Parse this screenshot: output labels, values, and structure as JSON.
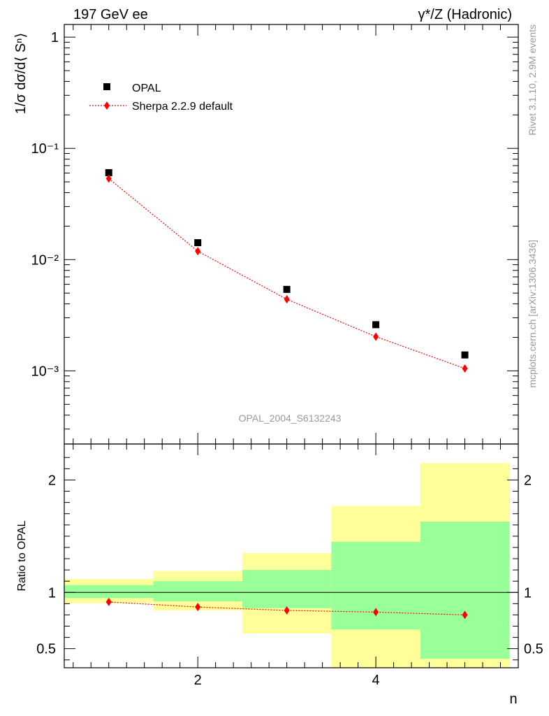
{
  "header": {
    "left": "197 GeV ee",
    "right": "γ*/Z (Hadronic)"
  },
  "side_text": {
    "rivet": "Rivet 3.1.10,  2.9M events",
    "mcplots": "mcplots.cern.ch [arXiv:1306.3436]"
  },
  "watermark": "OPAL_2004_S6132243",
  "chart_data": [
    {
      "type": "scatter",
      "ylabel": "1/σ dσ/d⟨ Sⁿ⟩",
      "yscale": "log",
      "ylim": [
        0.00022,
        1.3
      ],
      "xlim": [
        0.5,
        5.6
      ],
      "y_ticks": [
        {
          "value": 1,
          "label": "1"
        },
        {
          "value": 0.1,
          "label": "10⁻¹"
        },
        {
          "value": 0.01,
          "label": "10⁻²"
        },
        {
          "value": 0.001,
          "label": "10⁻³"
        }
      ],
      "legend": {
        "placement": "top-left"
      },
      "series": [
        {
          "name": "OPAL",
          "color": "#000000",
          "marker": "square",
          "x": [
            1,
            2,
            3,
            4,
            5
          ],
          "y": [
            0.0605,
            0.0142,
            0.0054,
            0.0026,
            0.00139
          ]
        },
        {
          "name": "Sherpa 2.2.9 default",
          "color": "#ff0000",
          "marker": "diamond",
          "line": "dotted",
          "x": [
            1,
            2,
            3,
            4,
            5
          ],
          "y": [
            0.0535,
            0.0119,
            0.0044,
            0.00203,
            0.00105
          ]
        }
      ]
    },
    {
      "type": "line",
      "ylabel": "Ratio to OPAL",
      "xlabel": "n",
      "xlim": [
        0.5,
        5.6
      ],
      "ylim": [
        0.33,
        2.32
      ],
      "x_ticks": [
        {
          "value": 2,
          "label": "2"
        },
        {
          "value": 4,
          "label": "4"
        }
      ],
      "y_ticks": [
        {
          "value": 0.5,
          "label": "0.5"
        },
        {
          "value": 1,
          "label": "1"
        },
        {
          "value": 2,
          "label": "2"
        }
      ],
      "reference_line": 1,
      "bands": [
        {
          "xlo": 0.5,
          "xhi": 1.5,
          "green": [
            0.95,
            1.065
          ],
          "yellow": [
            0.905,
            1.12
          ]
        },
        {
          "xlo": 1.5,
          "xhi": 2.5,
          "green": [
            0.92,
            1.1
          ],
          "yellow": [
            0.84,
            1.19
          ]
        },
        {
          "xlo": 2.5,
          "xhi": 3.5,
          "green": [
            0.86,
            1.2
          ],
          "yellow": [
            0.635,
            1.35
          ]
        },
        {
          "xlo": 3.5,
          "xhi": 4.5,
          "green": [
            0.67,
            1.45
          ],
          "yellow": [
            0.33,
            1.77
          ]
        },
        {
          "xlo": 4.5,
          "xhi": 5.5,
          "green": [
            0.41,
            1.63
          ],
          "yellow": [
            0.33,
            2.15
          ]
        }
      ],
      "band_colors": {
        "green": "#99ff99",
        "yellow": "#ffff99"
      },
      "series": [
        {
          "name": "Sherpa 2.2.9 default",
          "color": "#ff0000",
          "marker": "diamond",
          "line": "dotted",
          "x": [
            1,
            2,
            3,
            4,
            5
          ],
          "y": [
            0.915,
            0.87,
            0.84,
            0.825,
            0.8
          ]
        }
      ]
    }
  ]
}
